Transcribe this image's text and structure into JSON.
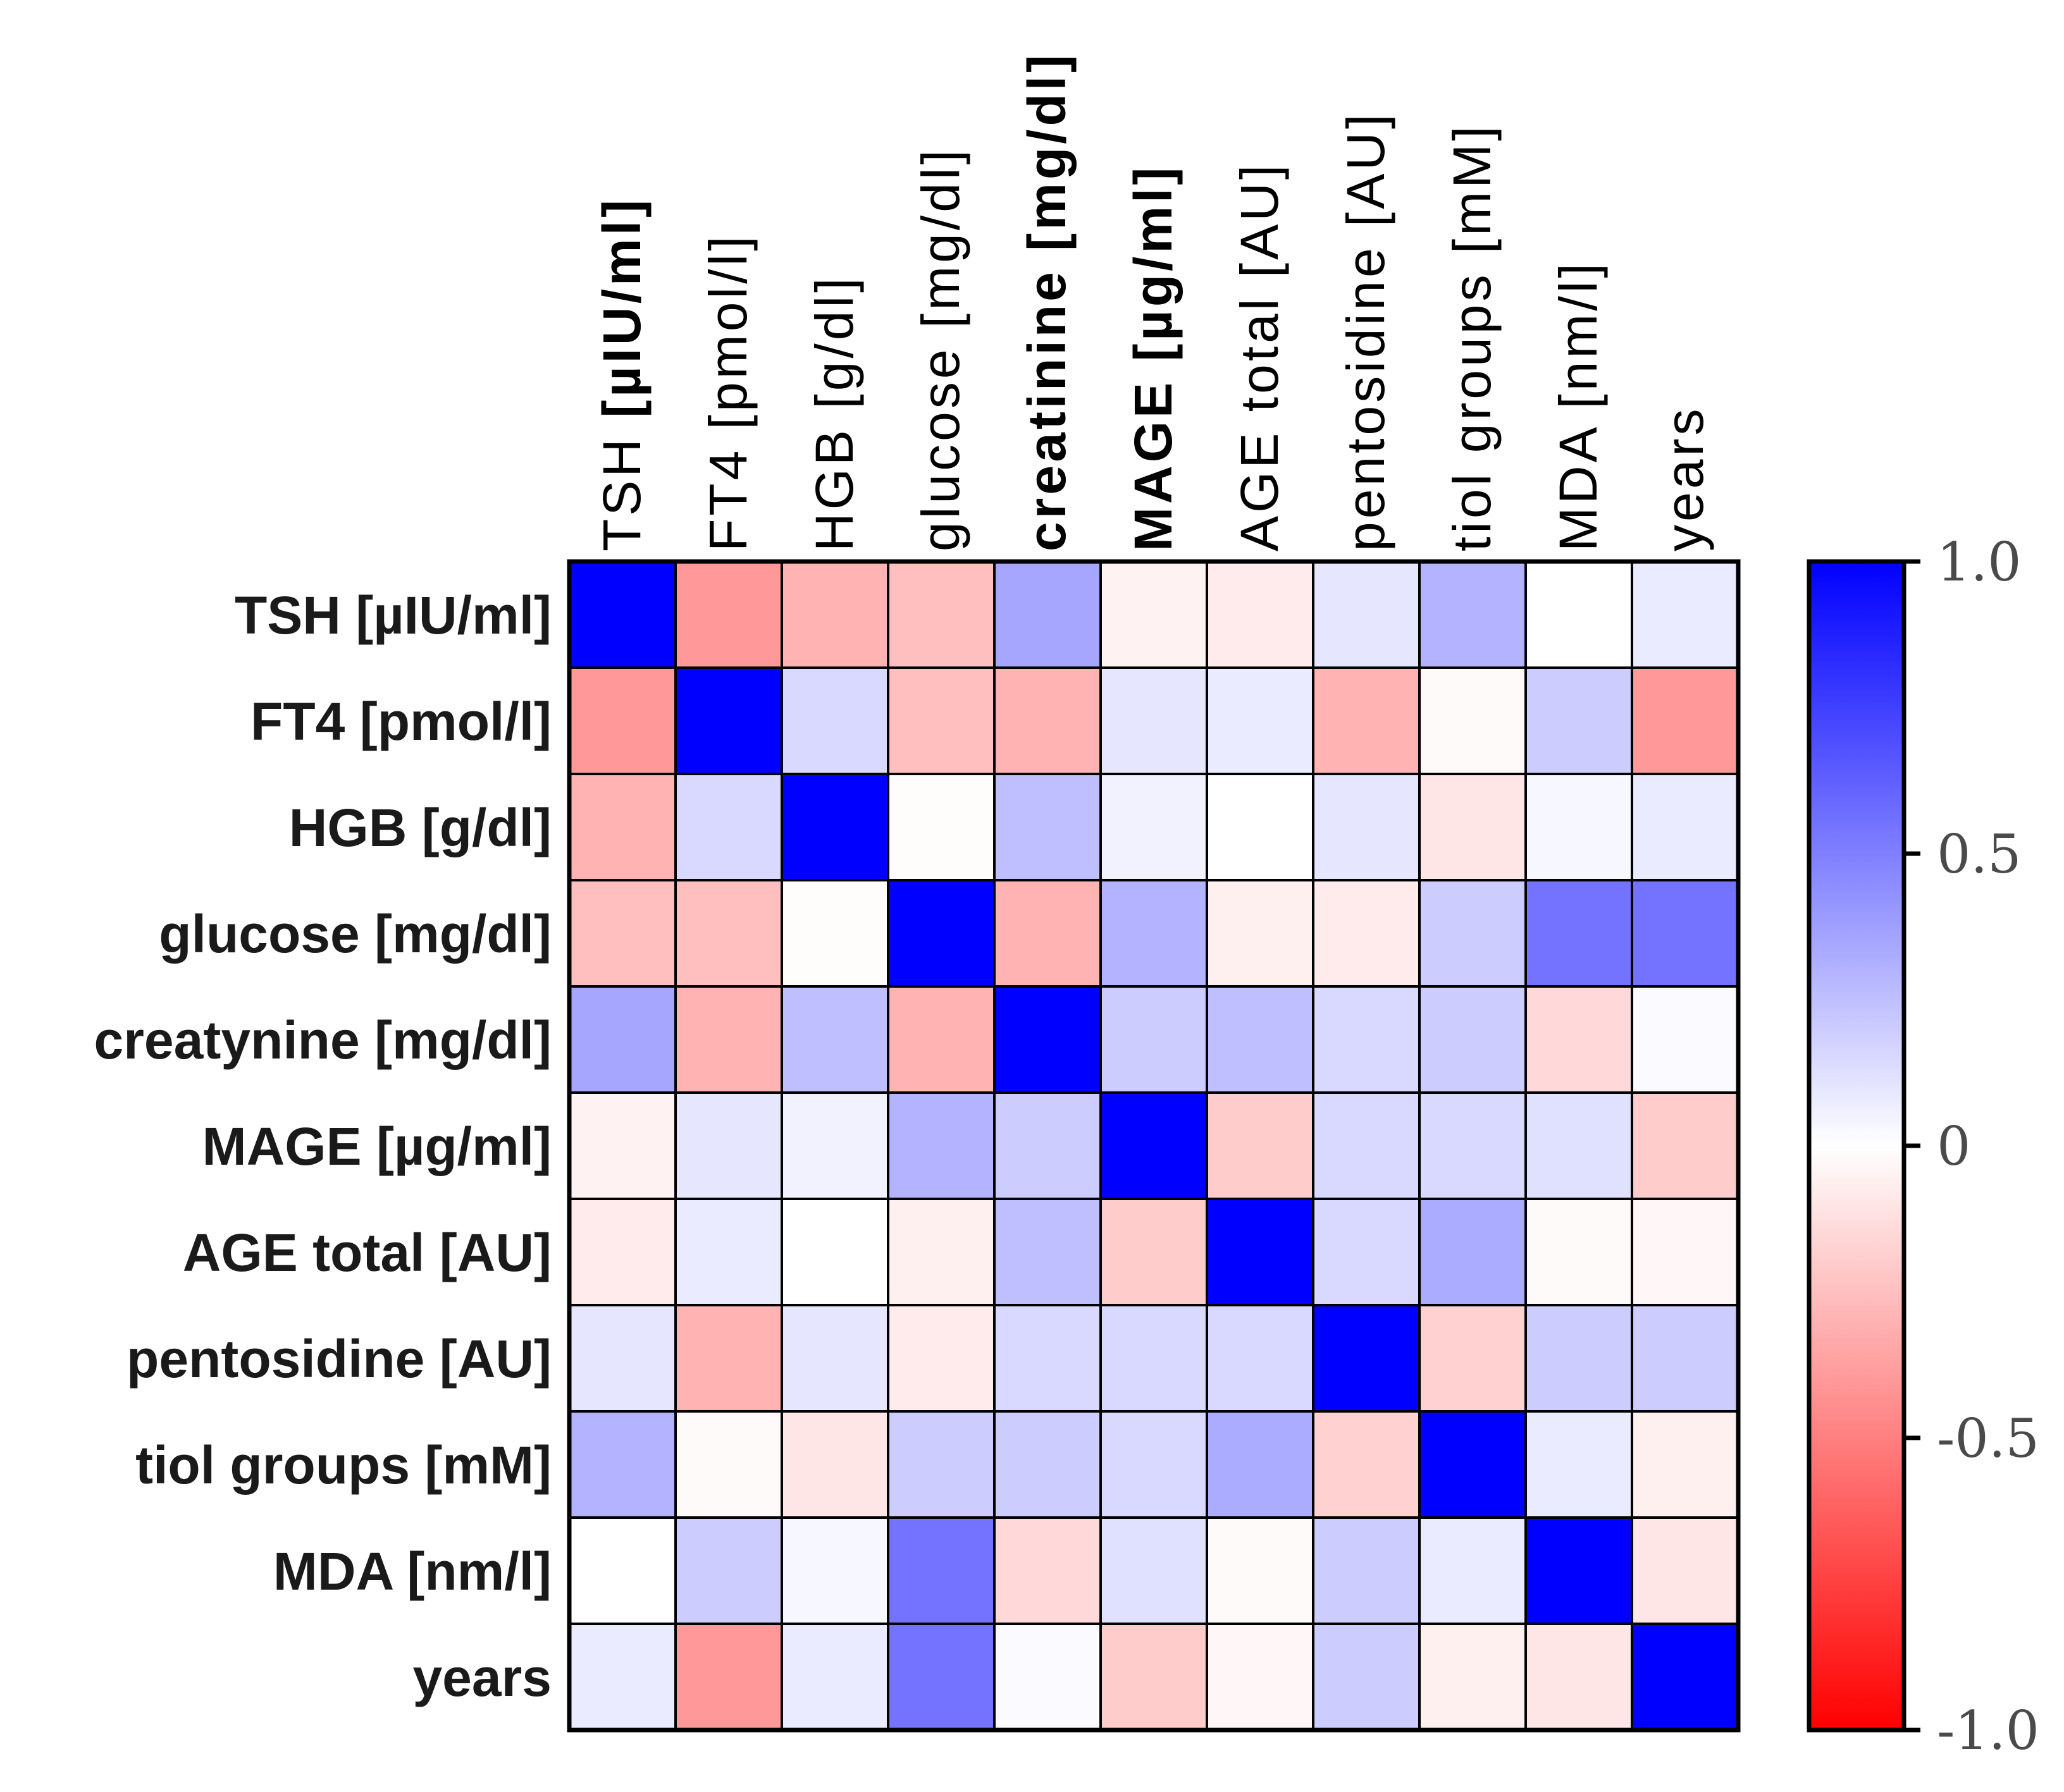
{
  "chart_data": {
    "type": "heatmap",
    "title": "",
    "row_labels": [
      {
        "name": "TSH",
        "unit": "[µIU/ml]"
      },
      {
        "name": "FT4",
        "unit": "[pmol/l]"
      },
      {
        "name": "HGB",
        "unit": "[g/dl]"
      },
      {
        "name": "glucose",
        "unit": "[mg/dl]"
      },
      {
        "name": "creatynine",
        "unit": "[mg/dl]"
      },
      {
        "name": "MAGE",
        "unit": "[µg/ml]"
      },
      {
        "name": "AGE total",
        "unit": "[AU]"
      },
      {
        "name": "pentosidine",
        "unit": "[AU]"
      },
      {
        "name": "tiol groups",
        "unit": "[mM]"
      },
      {
        "name": "MDA",
        "unit": "[nm/l]"
      },
      {
        "name": "years",
        "unit": ""
      }
    ],
    "column_labels": [
      {
        "name": "TSH",
        "unit": "[µIU/ml]"
      },
      {
        "name": "FT4",
        "unit": "[pmol/l]"
      },
      {
        "name": "HGB",
        "unit": "[g/dl]"
      },
      {
        "name": "glucose",
        "unit": "[mg/dl]"
      },
      {
        "name": "creatinine",
        "unit": "[mg/dl]"
      },
      {
        "name": "MAGE",
        "unit": "[µg/ml]"
      },
      {
        "name": "AGE total",
        "unit": "[AU]"
      },
      {
        "name": "pentosidine",
        "unit": "[AU]"
      },
      {
        "name": "tiol groups",
        "unit": "[mM]"
      },
      {
        "name": "MDA",
        "unit": "[nm/l]"
      },
      {
        "name": "years",
        "unit": ""
      }
    ],
    "values": [
      [
        1.0,
        -0.4,
        -0.3,
        -0.25,
        0.35,
        -0.05,
        -0.08,
        0.1,
        0.3,
        0.0,
        0.08
      ],
      [
        -0.4,
        1.0,
        0.15,
        -0.25,
        -0.3,
        0.1,
        0.08,
        -0.3,
        -0.02,
        0.2,
        -0.4
      ],
      [
        -0.3,
        0.15,
        1.0,
        -0.01,
        0.25,
        0.05,
        0.0,
        0.1,
        -0.1,
        0.03,
        0.08
      ],
      [
        -0.25,
        -0.25,
        -0.01,
        1.0,
        -0.3,
        0.3,
        -0.06,
        -0.08,
        0.2,
        0.55,
        0.55
      ],
      [
        0.35,
        -0.3,
        0.25,
        -0.3,
        1.0,
        0.2,
        0.25,
        0.15,
        0.2,
        -0.15,
        0.02
      ],
      [
        -0.05,
        0.1,
        0.05,
        0.3,
        0.2,
        1.0,
        -0.2,
        0.15,
        0.15,
        0.12,
        -0.2
      ],
      [
        -0.08,
        0.08,
        0.0,
        -0.06,
        0.25,
        -0.2,
        1.0,
        0.15,
        0.33,
        -0.02,
        -0.03
      ],
      [
        0.1,
        -0.3,
        0.1,
        -0.08,
        0.15,
        0.15,
        0.15,
        1.0,
        -0.18,
        0.2,
        0.2
      ],
      [
        0.3,
        -0.02,
        -0.1,
        0.2,
        0.2,
        0.15,
        0.33,
        -0.18,
        1.0,
        0.08,
        -0.06
      ],
      [
        0.0,
        0.2,
        0.03,
        0.55,
        -0.15,
        0.12,
        -0.02,
        0.2,
        0.08,
        1.0,
        -0.1
      ],
      [
        0.08,
        -0.4,
        0.08,
        0.55,
        0.02,
        -0.2,
        -0.03,
        0.2,
        -0.06,
        -0.1,
        1.0
      ]
    ],
    "colorbar": {
      "range": [
        -1.0,
        1.0
      ],
      "tick_labels": [
        "1.0",
        "0.5",
        "0",
        "-0.5",
        "-1.0"
      ],
      "tick_values": [
        1.0,
        0.5,
        0,
        -0.5,
        -1.0
      ],
      "color_high": "#0000ff",
      "color_mid": "#ffffff",
      "color_low": "#ff0000"
    },
    "unit_accent_color": "#0b3a8c"
  }
}
